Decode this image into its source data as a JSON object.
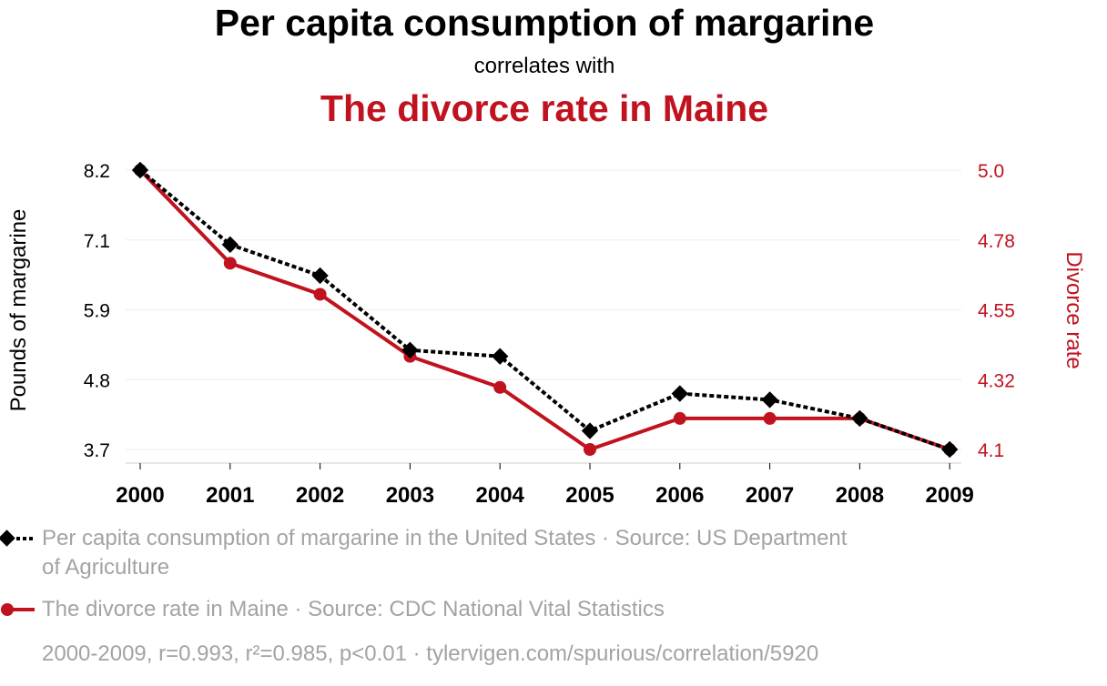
{
  "header": {
    "title": "Per capita consumption of margarine",
    "subtitle": "correlates with",
    "title2": "The divorce rate in Maine"
  },
  "colors": {
    "series1": "#000000",
    "series2": "#c1121f",
    "muted_text": "#a3a3a3",
    "grid": "#eeeeee"
  },
  "chart_data": {
    "type": "line",
    "x": [
      2000,
      2001,
      2002,
      2003,
      2004,
      2005,
      2006,
      2007,
      2008,
      2009
    ],
    "xticks": [
      "2000",
      "2001",
      "2002",
      "2003",
      "2004",
      "2005",
      "2006",
      "2007",
      "2008",
      "2009"
    ],
    "series": [
      {
        "name": "Per capita consumption of margarine in the United States · Source: US Department of Agriculture",
        "values": [
          8.2,
          7.0,
          6.5,
          5.3,
          5.2,
          4.0,
          4.6,
          4.5,
          4.2,
          3.7
        ],
        "axis": "left",
        "style": "dotted",
        "marker": "diamond"
      },
      {
        "name": "The divorce rate in Maine · Source: CDC National Vital Statistics",
        "values": [
          5.0,
          4.7,
          4.6,
          4.4,
          4.3,
          4.1,
          4.2,
          4.2,
          4.2,
          4.1
        ],
        "axis": "right",
        "style": "solid",
        "marker": "circle"
      }
    ],
    "ylabel": "Pounds of margarine",
    "ylabel_right": "Divorce rate",
    "ylim": [
      3.7,
      8.2
    ],
    "ylim_right": [
      4.1,
      5.0
    ],
    "yticks": [
      "8.2",
      "7.1",
      "5.9",
      "4.8",
      "3.7"
    ],
    "yticks_right": [
      "5.0",
      "4.78",
      "4.55",
      "4.32",
      "4.1"
    ],
    "grid": true,
    "legend_position": "bottom-left"
  },
  "legend": {
    "items": [
      {
        "label": "Per capita consumption of margarine in the United States · Source: US Department of Agriculture"
      },
      {
        "label": "The divorce rate in Maine · Source: CDC National Vital Statistics"
      }
    ]
  },
  "footer": {
    "text": "2000-2009, r=0.993, r²=0.985, p<0.01 · tylervigen.com/spurious/correlation/5920"
  }
}
